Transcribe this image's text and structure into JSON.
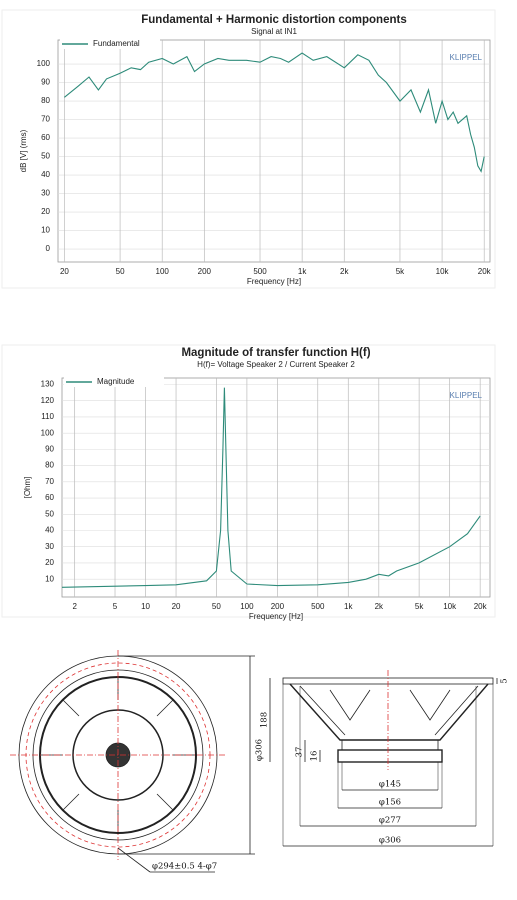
{
  "chart_data": [
    {
      "type": "line",
      "title": "Fundamental + Harmonic distortion components",
      "subtitle": "Signal at IN1",
      "x_label": "Frequency [Hz]",
      "y_label": "dB [V] (rms)",
      "brand": "KLIPPEL",
      "log_x": true,
      "grid": true,
      "legend": "top-left",
      "x": [
        20,
        25,
        30,
        35,
        40,
        50,
        60,
        70,
        80,
        100,
        120,
        150,
        170,
        200,
        250,
        300,
        400,
        500,
        600,
        700,
        800,
        1000,
        1200,
        1500,
        2000,
        2500,
        3000,
        3500,
        4000,
        5000,
        6000,
        7000,
        8000,
        9000,
        10000,
        11000,
        12000,
        13000,
        15000,
        16000,
        17000,
        18000,
        19000,
        20000
      ],
      "series": [
        {
          "name": "Fundamental",
          "color": "#2e8b7a",
          "values": [
            82,
            88,
            93,
            86,
            92,
            95,
            98,
            97,
            101,
            103,
            100,
            104,
            96,
            100,
            103,
            102,
            102,
            101,
            104,
            103,
            101,
            106,
            102,
            104,
            98,
            105,
            102,
            94,
            90,
            80,
            86,
            74,
            86,
            68,
            80,
            70,
            74,
            68,
            72,
            62,
            55,
            45,
            42,
            50
          ]
        }
      ],
      "xlim": [
        18,
        22000
      ],
      "ylim": [
        -7,
        113
      ],
      "xticks": [
        20,
        50,
        100,
        200,
        500,
        {
          "value": 1000,
          "label": "1k"
        },
        {
          "value": 2000,
          "label": "2k"
        },
        {
          "value": 5000,
          "label": "5k"
        },
        {
          "value": 10000,
          "label": "10k"
        },
        {
          "value": 20000,
          "label": "20k"
        }
      ],
      "yticks": [
        0,
        10,
        20,
        30,
        40,
        50,
        60,
        70,
        80,
        90,
        100
      ]
    },
    {
      "type": "line",
      "title": "Magnitude of transfer function H(f)",
      "subtitle": "H(f)= Voltage Speaker 2 / Current Speaker 2",
      "x_label": "Frequency [Hz]",
      "y_label": "[Ohm]",
      "brand": "KLIPPEL",
      "log_x": true,
      "grid": true,
      "legend": "top-left",
      "x": [
        1.5,
        10,
        20,
        40,
        50,
        55,
        58,
        60,
        62,
        65,
        70,
        100,
        200,
        500,
        1000,
        1500,
        2000,
        2500,
        3000,
        5000,
        10000,
        15000,
        20000
      ],
      "series": [
        {
          "name": "Magnitude",
          "color": "#2e8b7a",
          "values": [
            5,
            6,
            6.5,
            9,
            15,
            40,
            90,
            128,
            90,
            40,
            15,
            7,
            6,
            6.5,
            8,
            10,
            13,
            12,
            15,
            20,
            30,
            38,
            49
          ]
        }
      ],
      "xlim": [
        1.5,
        25000
      ],
      "ylim": [
        -1,
        134
      ],
      "xticks": [
        2,
        5,
        10,
        20,
        50,
        100,
        200,
        500,
        {
          "value": 1000,
          "label": "1k"
        },
        {
          "value": 2000,
          "label": "2k"
        },
        {
          "value": 5000,
          "label": "5k"
        },
        {
          "value": 10000,
          "label": "10k"
        },
        {
          "value": 20000,
          "label": "20k"
        }
      ],
      "yticks": [
        10,
        20,
        30,
        40,
        50,
        60,
        70,
        80,
        90,
        100,
        110,
        120,
        130
      ]
    }
  ],
  "drawing": {
    "labels": {
      "bolt": "φ294±0.5 4-φ7",
      "front_dia": "φ306",
      "depth": "188",
      "flange": "37",
      "plate": "16",
      "d145": "φ145",
      "d156": "φ156",
      "d277": "φ277",
      "d306": "φ306",
      "rim": "5"
    }
  }
}
